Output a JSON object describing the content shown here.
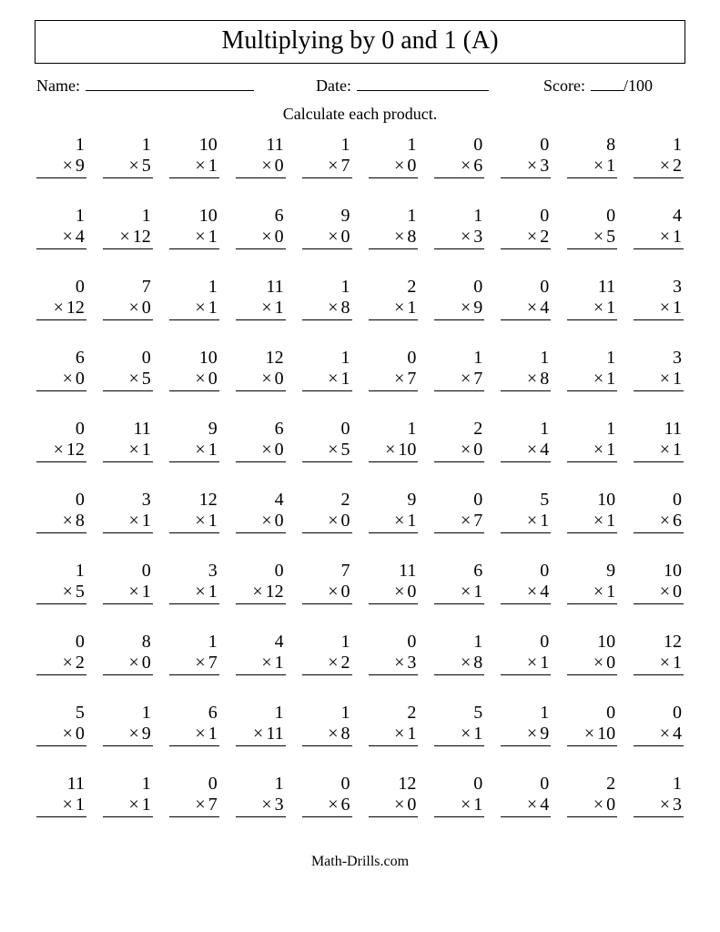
{
  "title": "Multiplying by 0 and 1 (A)",
  "labels": {
    "name": "Name:",
    "date": "Date:",
    "score": "Score:",
    "score_total": "/100"
  },
  "instruction": "Calculate each product.",
  "mult_sign": "×",
  "footer": "Math-Drills.com",
  "problems": [
    [
      [
        1,
        9
      ],
      [
        1,
        5
      ],
      [
        10,
        1
      ],
      [
        11,
        0
      ],
      [
        1,
        7
      ],
      [
        1,
        0
      ],
      [
        0,
        6
      ],
      [
        0,
        3
      ],
      [
        8,
        1
      ],
      [
        1,
        2
      ]
    ],
    [
      [
        1,
        4
      ],
      [
        1,
        12
      ],
      [
        10,
        1
      ],
      [
        6,
        0
      ],
      [
        9,
        0
      ],
      [
        1,
        8
      ],
      [
        1,
        3
      ],
      [
        0,
        2
      ],
      [
        0,
        5
      ],
      [
        4,
        1
      ]
    ],
    [
      [
        0,
        12
      ],
      [
        7,
        0
      ],
      [
        1,
        1
      ],
      [
        11,
        1
      ],
      [
        1,
        8
      ],
      [
        2,
        1
      ],
      [
        0,
        9
      ],
      [
        0,
        4
      ],
      [
        11,
        1
      ],
      [
        3,
        1
      ]
    ],
    [
      [
        6,
        0
      ],
      [
        0,
        5
      ],
      [
        10,
        0
      ],
      [
        12,
        0
      ],
      [
        1,
        1
      ],
      [
        0,
        7
      ],
      [
        1,
        7
      ],
      [
        1,
        8
      ],
      [
        1,
        1
      ],
      [
        3,
        1
      ]
    ],
    [
      [
        0,
        12
      ],
      [
        11,
        1
      ],
      [
        9,
        1
      ],
      [
        6,
        0
      ],
      [
        0,
        5
      ],
      [
        1,
        10
      ],
      [
        2,
        0
      ],
      [
        1,
        4
      ],
      [
        1,
        1
      ],
      [
        11,
        1
      ]
    ],
    [
      [
        0,
        8
      ],
      [
        3,
        1
      ],
      [
        12,
        1
      ],
      [
        4,
        0
      ],
      [
        2,
        0
      ],
      [
        9,
        1
      ],
      [
        0,
        7
      ],
      [
        5,
        1
      ],
      [
        10,
        1
      ],
      [
        0,
        6
      ]
    ],
    [
      [
        1,
        5
      ],
      [
        0,
        1
      ],
      [
        3,
        1
      ],
      [
        0,
        12
      ],
      [
        7,
        0
      ],
      [
        11,
        0
      ],
      [
        6,
        1
      ],
      [
        0,
        4
      ],
      [
        9,
        1
      ],
      [
        10,
        0
      ]
    ],
    [
      [
        0,
        2
      ],
      [
        8,
        0
      ],
      [
        1,
        7
      ],
      [
        4,
        1
      ],
      [
        1,
        2
      ],
      [
        0,
        3
      ],
      [
        1,
        8
      ],
      [
        0,
        1
      ],
      [
        10,
        0
      ],
      [
        12,
        1
      ]
    ],
    [
      [
        5,
        0
      ],
      [
        1,
        9
      ],
      [
        6,
        1
      ],
      [
        1,
        11
      ],
      [
        1,
        8
      ],
      [
        2,
        1
      ],
      [
        5,
        1
      ],
      [
        1,
        9
      ],
      [
        0,
        10
      ],
      [
        0,
        4
      ]
    ],
    [
      [
        11,
        1
      ],
      [
        1,
        1
      ],
      [
        0,
        7
      ],
      [
        1,
        3
      ],
      [
        0,
        6
      ],
      [
        12,
        0
      ],
      [
        0,
        1
      ],
      [
        0,
        4
      ],
      [
        2,
        0
      ],
      [
        1,
        3
      ]
    ]
  ]
}
